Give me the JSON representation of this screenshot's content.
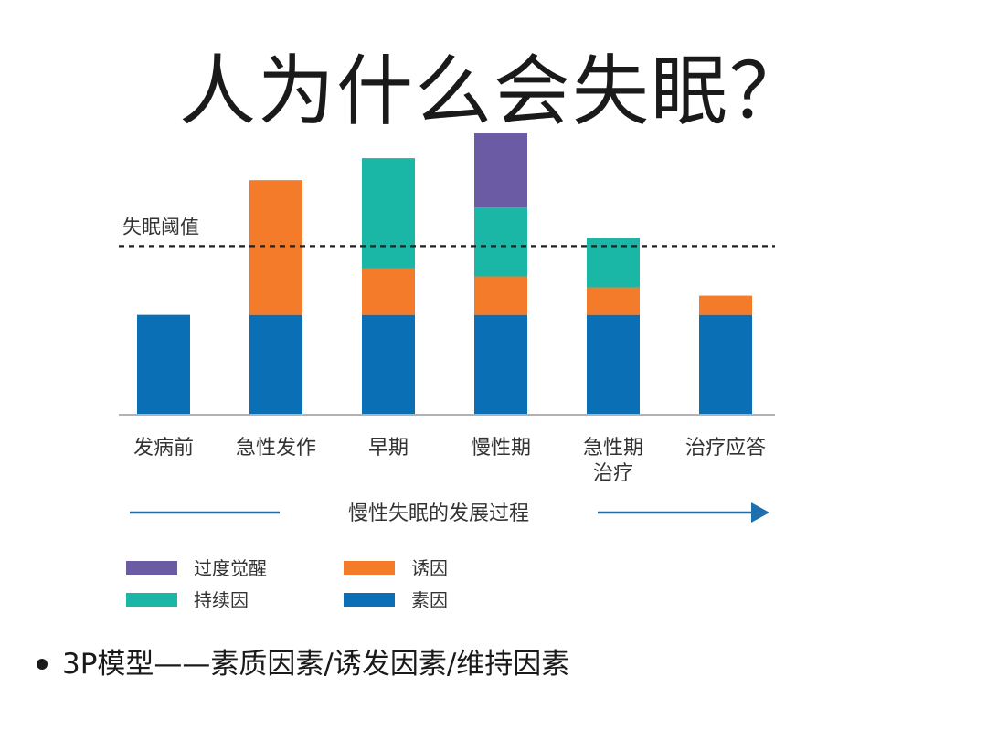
{
  "page": {
    "title": "人为什么会失眠？"
  },
  "chart_data": {
    "type": "bar",
    "stacked": true,
    "categories": [
      {
        "label": "发病前",
        "lines": [
          "发病前"
        ]
      },
      {
        "label": "急性发作",
        "lines": [
          "急性发作"
        ]
      },
      {
        "label": "早期",
        "lines": [
          "早期"
        ]
      },
      {
        "label": "慢性期",
        "lines": [
          "慢性期"
        ]
      },
      {
        "label": "急性期治疗",
        "lines": [
          "急性期",
          "治疗"
        ]
      },
      {
        "label": "治疗应答",
        "lines": [
          "治疗应答"
        ]
      }
    ],
    "series": [
      {
        "name": "素因",
        "color": "#0b6fb5",
        "values": [
          36,
          36,
          36,
          36,
          36,
          36
        ]
      },
      {
        "name": "诱因",
        "color": "#f47b2a",
        "values": [
          0,
          49,
          17,
          14,
          10,
          7
        ]
      },
      {
        "name": "持续因",
        "color": "#1bb7a6",
        "values": [
          0,
          0,
          40,
          25,
          18,
          0
        ]
      },
      {
        "name": "过度觉醒",
        "color": "#6a5ba4",
        "values": [
          0,
          0,
          0,
          27,
          0,
          0
        ]
      }
    ],
    "ylim": [
      0,
      103
    ],
    "threshold": {
      "label": "失眠阈值",
      "value": 61
    },
    "xlabel": "慢性失眠的发展过程",
    "legend_order": [
      "过度觉醒",
      "诱因",
      "持续因",
      "素因"
    ],
    "legend_position": "bottom-left"
  },
  "footnote": {
    "text": "3P模型——素质因素/诱发因素/维持因素"
  }
}
